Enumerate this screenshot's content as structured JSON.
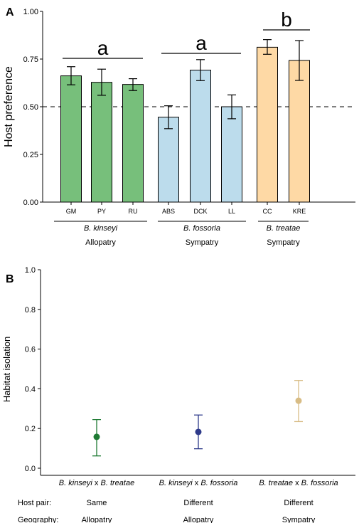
{
  "chart_data": [
    {
      "type": "bar",
      "panel_label": "A",
      "ylabel": "Host preference",
      "ylim": [
        0,
        1
      ],
      "yticks": [
        "0.00",
        "0.25",
        "0.50",
        "0.75",
        "1.00"
      ],
      "reference_line": 0.5,
      "categories": [
        "GM",
        "PY",
        "RU",
        "ABS",
        "DCK",
        "LL",
        "CC",
        "KRE"
      ],
      "values": [
        0.662,
        0.628,
        0.617,
        0.445,
        0.692,
        0.5,
        0.812,
        0.743
      ],
      "error_low": [
        0.615,
        0.56,
        0.585,
        0.385,
        0.637,
        0.437,
        0.775,
        0.638
      ],
      "error_high": [
        0.71,
        0.697,
        0.647,
        0.505,
        0.747,
        0.562,
        0.852,
        0.847
      ],
      "groups": [
        {
          "species": "B. kinseyi",
          "geography": "Allopatry",
          "letter": "a",
          "color": "#77bf7b",
          "indices": [
            0,
            1,
            2
          ]
        },
        {
          "species": "B. fossoria",
          "geography": "Sympatry",
          "letter": "a",
          "color": "#bcdcec",
          "indices": [
            3,
            4,
            5
          ]
        },
        {
          "species": "B. treatae",
          "geography": "Sympatry",
          "letter": "b",
          "color": "#fed9a5",
          "indices": [
            6,
            7
          ]
        }
      ]
    },
    {
      "type": "scatter",
      "panel_label": "B",
      "ylabel": "Habitat isolation",
      "ylim": [
        0,
        1
      ],
      "yticks": [
        "0.0",
        "0.2",
        "0.4",
        "0.6",
        "0.8",
        "1.0"
      ],
      "row_labels": {
        "host_pair": "Host pair:",
        "geography": "Geography:"
      },
      "points": [
        {
          "pair": [
            {
              "text": "B. kinseyi",
              "italic": true
            },
            {
              "text": " x ",
              "italic": false
            },
            {
              "text": "B. treatae",
              "italic": true
            }
          ],
          "value": 0.158,
          "low": 0.062,
          "high": 0.245,
          "host_pair": "Same",
          "geography": "Allopatry",
          "color": "#1e7a33"
        },
        {
          "pair": [
            {
              "text": "B. kinseyi",
              "italic": true
            },
            {
              "text": " x ",
              "italic": false
            },
            {
              "text": "B. fossoria",
              "italic": true
            }
          ],
          "value": 0.183,
          "low": 0.098,
          "high": 0.268,
          "host_pair": "Different",
          "geography": "Allopatry",
          "color": "#2e3a8a"
        },
        {
          "pair": [
            {
              "text": "B. treatae",
              "italic": true
            },
            {
              "text": " x ",
              "italic": false
            },
            {
              "text": "B. fossoria",
              "italic": true
            }
          ],
          "value": 0.34,
          "low": 0.235,
          "high": 0.442,
          "host_pair": "Different",
          "geography": "Sympatry",
          "color": "#d8bc85"
        }
      ]
    }
  ]
}
